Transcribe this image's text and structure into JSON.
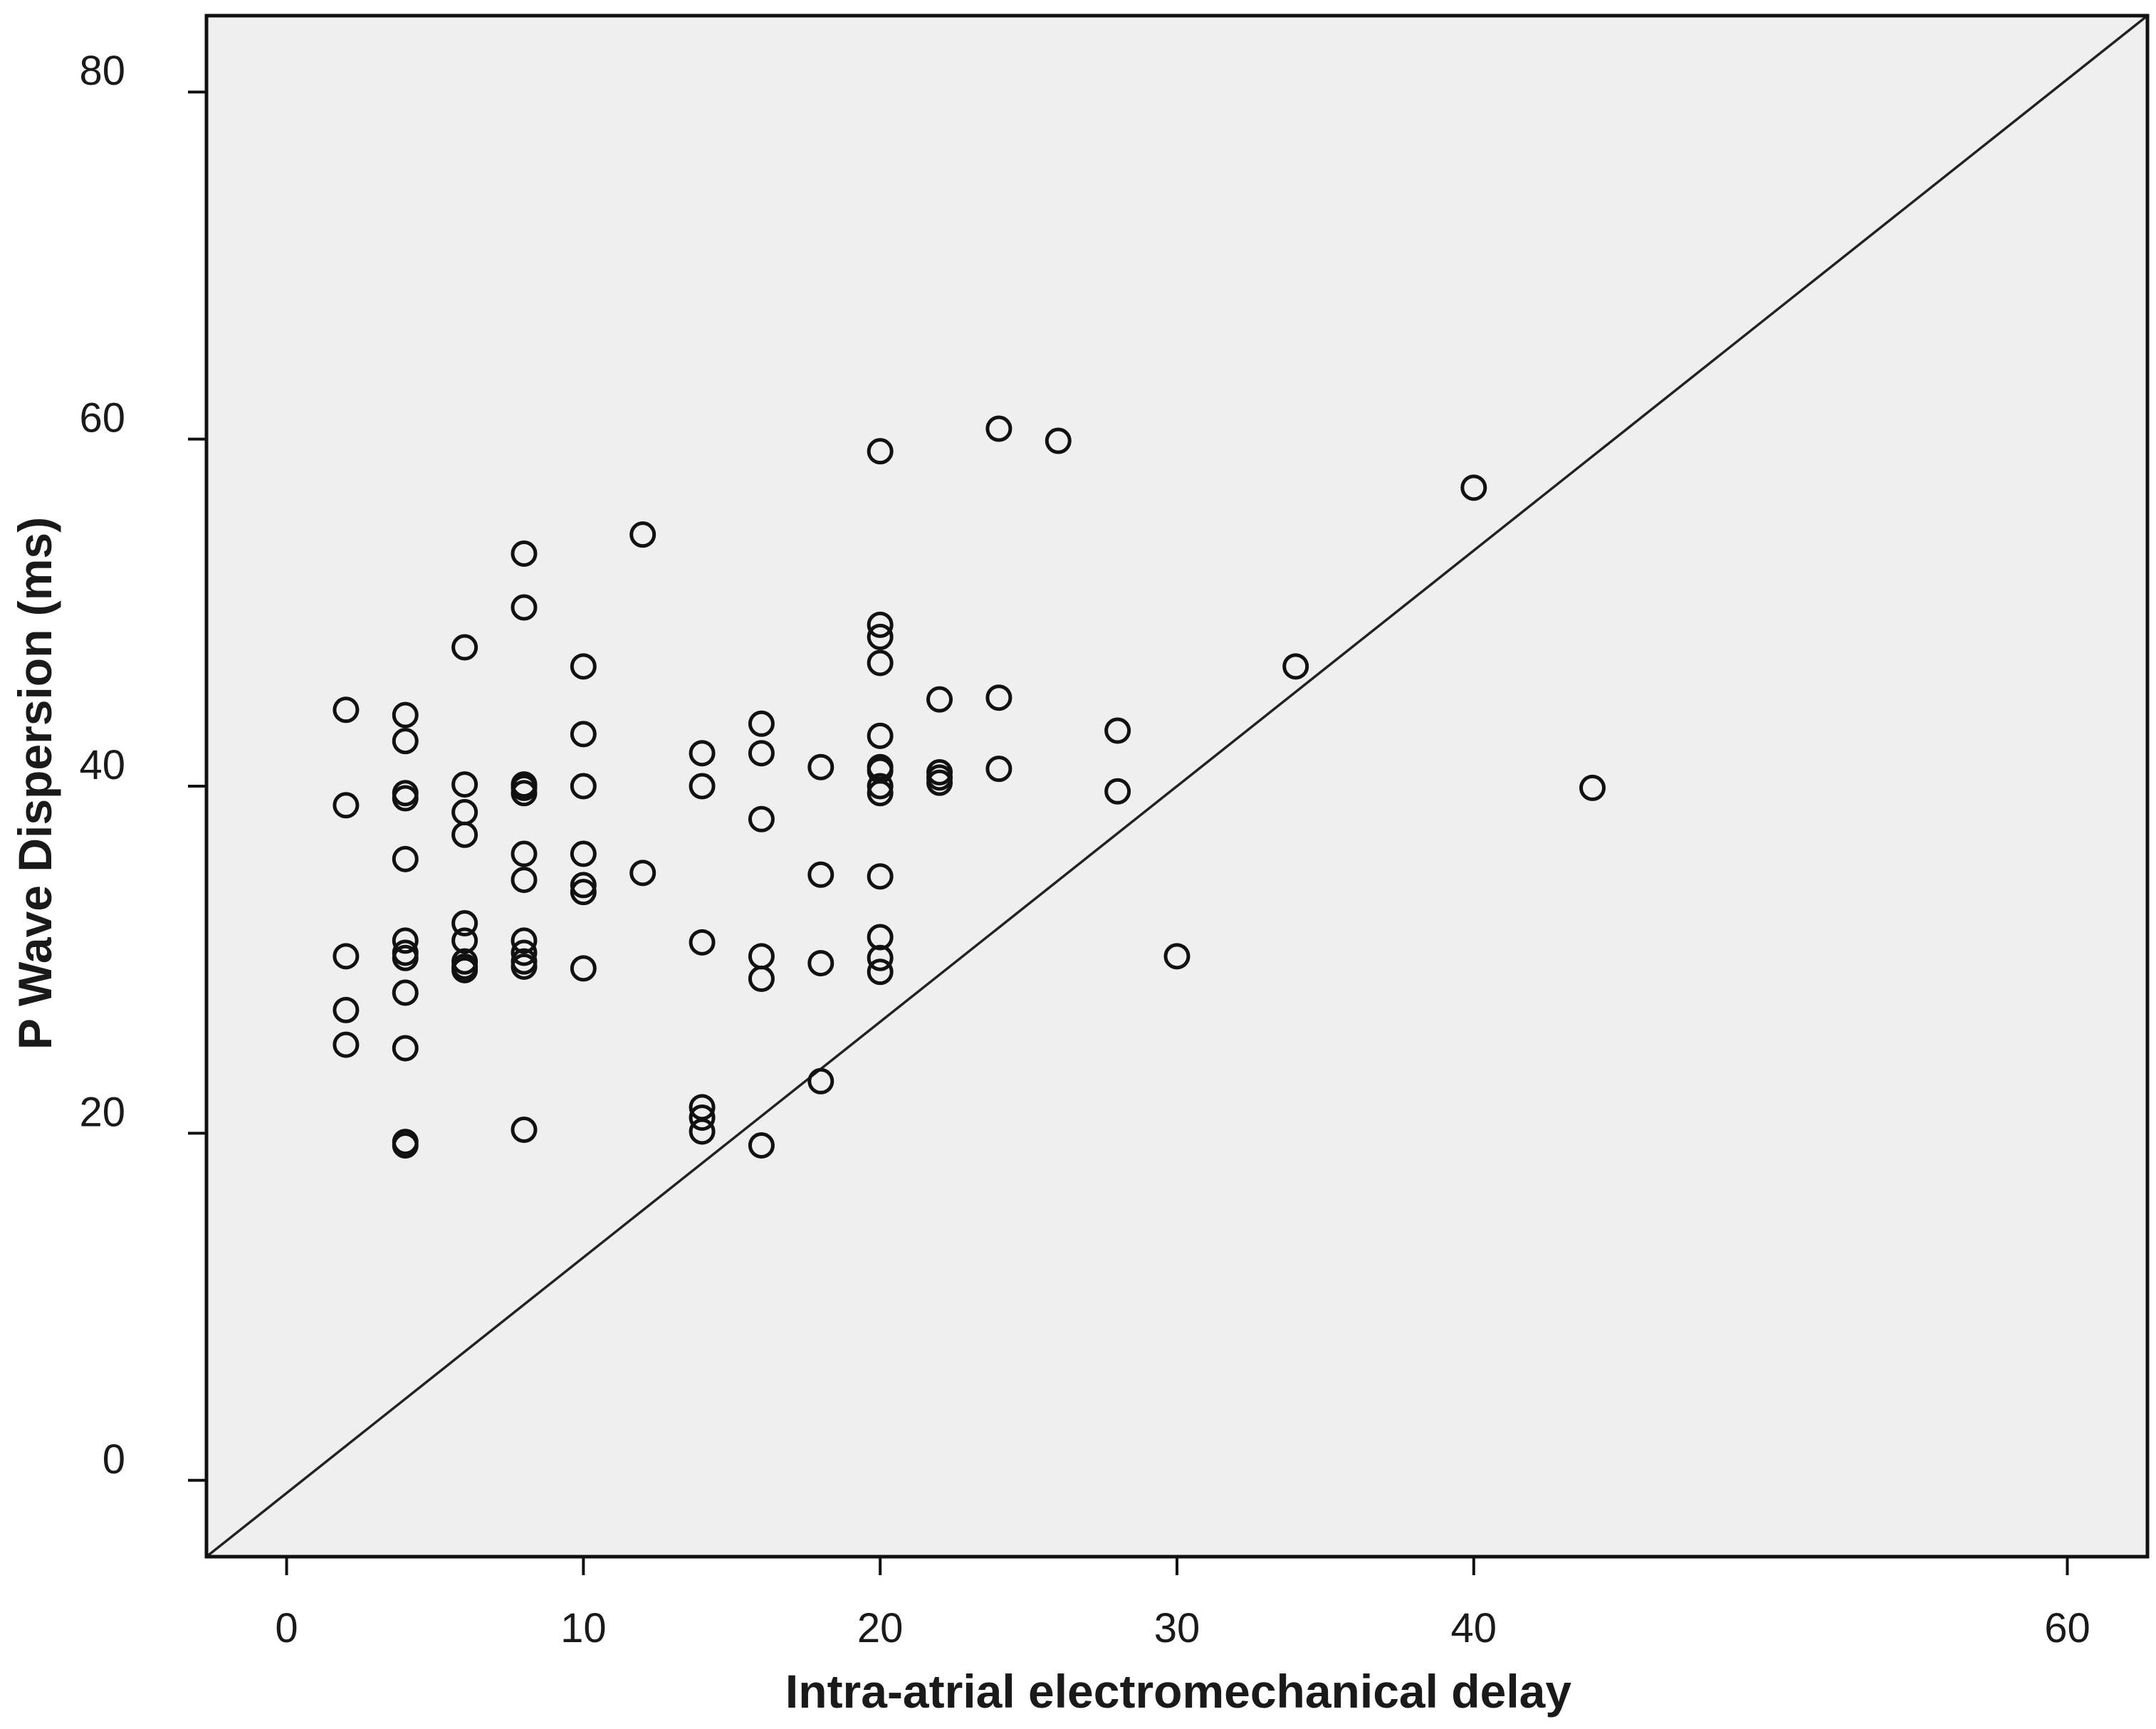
{
  "chart_data": {
    "type": "scatter",
    "title": "",
    "xlabel": "Intra-atrial electromechanical delay",
    "ylabel": "P Wave Dispersion (ms)",
    "xlim": [
      -2.7,
      62.7
    ],
    "ylim": [
      -4.4,
      84.4
    ],
    "x_ticks": [
      0,
      10,
      20,
      30,
      40,
      60
    ],
    "x_tick_labels": [
      "0",
      "10",
      "20",
      "30",
      "40",
      "60"
    ],
    "y_ticks": [
      0,
      20,
      40,
      60,
      80
    ],
    "y_tick_labels": [
      "0",
      "20",
      "40",
      "60",
      "80"
    ],
    "background_color": "#efefef",
    "marker": "open-circle",
    "reference_line": {
      "from": [
        -2.7,
        -4.4
      ],
      "to": [
        62.7,
        84.4
      ]
    },
    "grid": false,
    "legend": "none",
    "points": [
      {
        "x": 2,
        "y": 44.4
      },
      {
        "x": 2,
        "y": 38.9
      },
      {
        "x": 2,
        "y": 30.2
      },
      {
        "x": 2,
        "y": 27.1
      },
      {
        "x": 2,
        "y": 25.1
      },
      {
        "x": 4,
        "y": 44.1
      },
      {
        "x": 4,
        "y": 42.6
      },
      {
        "x": 4,
        "y": 39.6
      },
      {
        "x": 4,
        "y": 39.3
      },
      {
        "x": 4,
        "y": 35.8
      },
      {
        "x": 4,
        "y": 31.1
      },
      {
        "x": 4,
        "y": 30.4
      },
      {
        "x": 4,
        "y": 30.1
      },
      {
        "x": 4,
        "y": 28.1
      },
      {
        "x": 4,
        "y": 24.9
      },
      {
        "x": 4,
        "y": 19.5
      },
      {
        "x": 4,
        "y": 19.3
      },
      {
        "x": 6,
        "y": 48.0
      },
      {
        "x": 6,
        "y": 40.1
      },
      {
        "x": 6,
        "y": 38.5
      },
      {
        "x": 6,
        "y": 37.2
      },
      {
        "x": 6,
        "y": 32.1
      },
      {
        "x": 6,
        "y": 31.1
      },
      {
        "x": 6,
        "y": 29.9
      },
      {
        "x": 6,
        "y": 29.6
      },
      {
        "x": 6,
        "y": 29.4
      },
      {
        "x": 8,
        "y": 53.4
      },
      {
        "x": 8,
        "y": 50.3
      },
      {
        "x": 8,
        "y": 40.1
      },
      {
        "x": 8,
        "y": 39.9
      },
      {
        "x": 8,
        "y": 39.6
      },
      {
        "x": 8,
        "y": 36.1
      },
      {
        "x": 8,
        "y": 34.6
      },
      {
        "x": 8,
        "y": 31.1
      },
      {
        "x": 8,
        "y": 30.4
      },
      {
        "x": 8,
        "y": 29.9
      },
      {
        "x": 8,
        "y": 29.6
      },
      {
        "x": 8,
        "y": 20.2
      },
      {
        "x": 10,
        "y": 46.9
      },
      {
        "x": 10,
        "y": 43.0
      },
      {
        "x": 10,
        "y": 40.0
      },
      {
        "x": 10,
        "y": 36.1
      },
      {
        "x": 10,
        "y": 34.3
      },
      {
        "x": 10,
        "y": 33.9
      },
      {
        "x": 10,
        "y": 29.5
      },
      {
        "x": 12,
        "y": 54.5
      },
      {
        "x": 12,
        "y": 35.0
      },
      {
        "x": 14,
        "y": 41.9
      },
      {
        "x": 14,
        "y": 40.0
      },
      {
        "x": 14,
        "y": 31.0
      },
      {
        "x": 14,
        "y": 21.5
      },
      {
        "x": 14,
        "y": 20.9
      },
      {
        "x": 14,
        "y": 20.1
      },
      {
        "x": 16,
        "y": 43.6
      },
      {
        "x": 16,
        "y": 41.9
      },
      {
        "x": 16,
        "y": 38.1
      },
      {
        "x": 16,
        "y": 30.2
      },
      {
        "x": 16,
        "y": 28.9
      },
      {
        "x": 16,
        "y": 19.3
      },
      {
        "x": 18,
        "y": 41.1
      },
      {
        "x": 18,
        "y": 34.9
      },
      {
        "x": 18,
        "y": 29.8
      },
      {
        "x": 18,
        "y": 23.0
      },
      {
        "x": 20,
        "y": 59.3
      },
      {
        "x": 20,
        "y": 49.3
      },
      {
        "x": 20,
        "y": 48.6
      },
      {
        "x": 20,
        "y": 47.1
      },
      {
        "x": 20,
        "y": 42.9
      },
      {
        "x": 20,
        "y": 41.1
      },
      {
        "x": 20,
        "y": 40.9
      },
      {
        "x": 20,
        "y": 40.0
      },
      {
        "x": 20,
        "y": 39.6
      },
      {
        "x": 20,
        "y": 34.8
      },
      {
        "x": 20,
        "y": 31.3
      },
      {
        "x": 20,
        "y": 30.1
      },
      {
        "x": 20,
        "y": 29.3
      },
      {
        "x": 22,
        "y": 45.0
      },
      {
        "x": 22,
        "y": 40.8
      },
      {
        "x": 22,
        "y": 40.5
      },
      {
        "x": 22,
        "y": 40.2
      },
      {
        "x": 24,
        "y": 60.6
      },
      {
        "x": 24,
        "y": 45.1
      },
      {
        "x": 24,
        "y": 41.0
      },
      {
        "x": 26,
        "y": 59.9
      },
      {
        "x": 28,
        "y": 43.2
      },
      {
        "x": 28,
        "y": 39.7
      },
      {
        "x": 30,
        "y": 30.2
      },
      {
        "x": 34,
        "y": 46.9
      },
      {
        "x": 40,
        "y": 57.2
      },
      {
        "x": 44,
        "y": 39.9
      }
    ]
  }
}
